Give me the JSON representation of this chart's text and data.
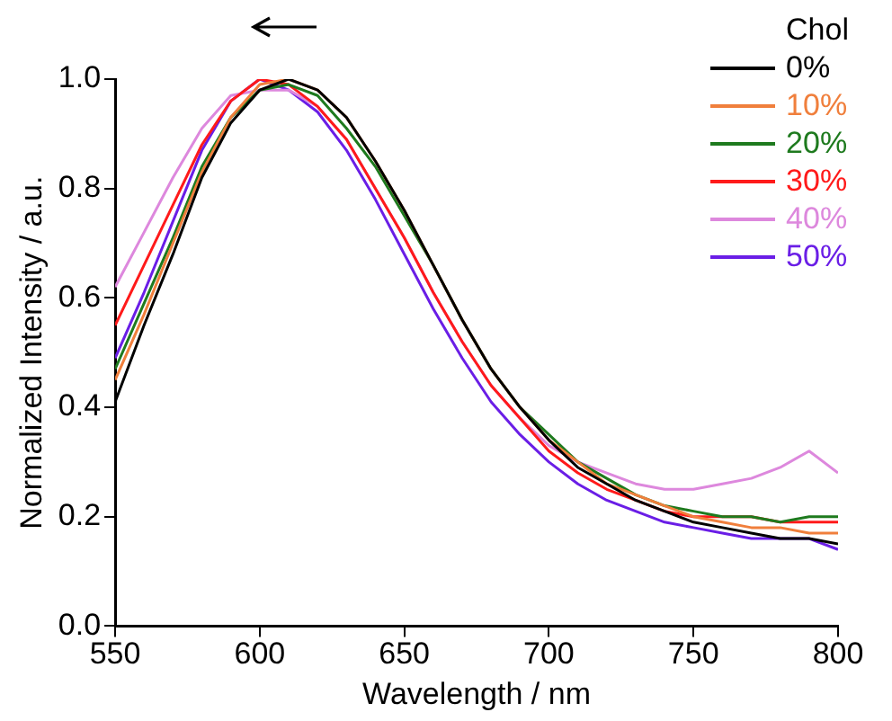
{
  "chart_data": {
    "type": "line",
    "xlabel": "Wavelength / nm",
    "ylabel": "Normalized Intensity / a.u.",
    "legend_title": "Chol",
    "legend": "top right",
    "grid": false,
    "marker": "none",
    "line_style": "solid",
    "x": [
      550,
      560,
      570,
      580,
      590,
      600,
      610,
      620,
      630,
      640,
      650,
      660,
      670,
      680,
      690,
      700,
      710,
      720,
      730,
      740,
      750,
      760,
      770,
      780,
      790,
      800
    ],
    "xlim": [
      550,
      800
    ],
    "xticks": [
      550,
      600,
      650,
      700,
      750,
      800
    ],
    "ylim": [
      0,
      1
    ],
    "yticks": [
      {
        "value": 0,
        "label": "0.0"
      },
      0.2,
      0.4,
      0.6,
      0.8,
      {
        "value": 1,
        "label": "1.0"
      }
    ],
    "series": [
      {
        "name": "0%",
        "color": "#000000",
        "values": [
          0.41,
          0.55,
          0.68,
          0.82,
          0.92,
          0.98,
          1.0,
          0.98,
          0.93,
          0.85,
          0.76,
          0.66,
          0.56,
          0.47,
          0.4,
          0.34,
          0.29,
          0.26,
          0.23,
          0.21,
          0.19,
          0.18,
          0.17,
          0.16,
          0.16,
          0.15
        ]
      },
      {
        "name": "10%",
        "color": "#f07f3c",
        "values": [
          0.45,
          0.57,
          0.7,
          0.83,
          0.93,
          0.99,
          1.0,
          0.98,
          0.93,
          0.85,
          0.76,
          0.66,
          0.56,
          0.47,
          0.4,
          0.34,
          0.3,
          0.26,
          0.24,
          0.22,
          0.2,
          0.19,
          0.18,
          0.18,
          0.17,
          0.17
        ]
      },
      {
        "name": "20%",
        "color": "#1e7a1e",
        "values": [
          0.47,
          0.59,
          0.71,
          0.84,
          0.93,
          0.98,
          0.99,
          0.97,
          0.91,
          0.84,
          0.75,
          0.66,
          0.56,
          0.47,
          0.4,
          0.35,
          0.3,
          0.27,
          0.24,
          0.22,
          0.21,
          0.2,
          0.2,
          0.19,
          0.2,
          0.2
        ]
      },
      {
        "name": "30%",
        "color": "#ff1a1a",
        "values": [
          0.55,
          0.66,
          0.77,
          0.88,
          0.96,
          1.0,
          0.99,
          0.95,
          0.89,
          0.8,
          0.71,
          0.61,
          0.52,
          0.44,
          0.38,
          0.32,
          0.28,
          0.25,
          0.23,
          0.21,
          0.2,
          0.2,
          0.2,
          0.19,
          0.19,
          0.19
        ]
      },
      {
        "name": "40%",
        "color": "#dd88dd",
        "values": [
          0.62,
          0.72,
          0.82,
          0.91,
          0.97,
          0.98,
          0.98,
          0.95,
          0.89,
          0.8,
          0.71,
          0.61,
          0.52,
          0.44,
          0.38,
          0.33,
          0.3,
          0.28,
          0.26,
          0.25,
          0.25,
          0.26,
          0.27,
          0.29,
          0.32,
          0.28
        ]
      },
      {
        "name": "50%",
        "color": "#6a1ee6",
        "values": [
          0.49,
          0.61,
          0.74,
          0.87,
          0.96,
          1.0,
          0.98,
          0.94,
          0.87,
          0.78,
          0.68,
          0.58,
          0.49,
          0.41,
          0.35,
          0.3,
          0.26,
          0.23,
          0.21,
          0.19,
          0.18,
          0.17,
          0.16,
          0.16,
          0.16,
          0.14
        ]
      }
    ]
  }
}
